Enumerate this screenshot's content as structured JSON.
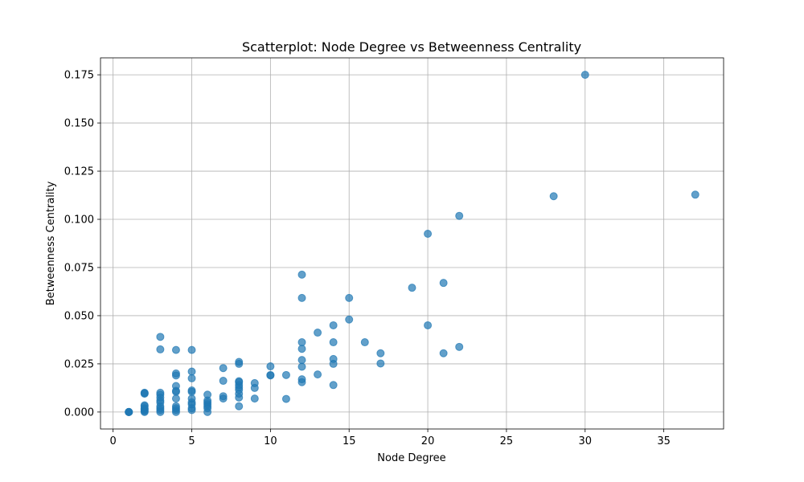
{
  "chart_data": {
    "type": "scatter",
    "title": "Scatterplot: Node Degree vs Betweenness Centrality",
    "xlabel": "Node Degree",
    "ylabel": "Betweenness Centrality",
    "xlim": [
      -0.8,
      38.8
    ],
    "ylim": [
      -0.0088,
      0.1838
    ],
    "xticks": [
      0,
      5,
      10,
      15,
      20,
      25,
      30,
      35
    ],
    "xtick_labels": [
      "0",
      "5",
      "10",
      "15",
      "20",
      "25",
      "30",
      "35"
    ],
    "yticks": [
      0.0,
      0.025,
      0.05,
      0.075,
      0.1,
      0.125,
      0.15,
      0.175
    ],
    "ytick_labels": [
      "0.000",
      "0.025",
      "0.050",
      "0.075",
      "0.100",
      "0.125",
      "0.150",
      "0.175"
    ],
    "grid": true,
    "color": "#1f77b4",
    "alpha": 0.7,
    "points": [
      {
        "x": 1,
        "y": 0.0
      },
      {
        "x": 1,
        "y": 0.0
      },
      {
        "x": 1,
        "y": 0.0
      },
      {
        "x": 1,
        "y": 0.0
      },
      {
        "x": 2,
        "y": 0.0
      },
      {
        "x": 2,
        "y": 0.0005
      },
      {
        "x": 2,
        "y": 0.001
      },
      {
        "x": 2,
        "y": 0.0015
      },
      {
        "x": 2,
        "y": 0.002
      },
      {
        "x": 2,
        "y": 0.003
      },
      {
        "x": 2,
        "y": 0.0035
      },
      {
        "x": 2,
        "y": 0.0095
      },
      {
        "x": 2,
        "y": 0.01
      },
      {
        "x": 2,
        "y": 0.0098
      },
      {
        "x": 3,
        "y": 0.0
      },
      {
        "x": 3,
        "y": 0.001
      },
      {
        "x": 3,
        "y": 0.002
      },
      {
        "x": 3,
        "y": 0.003
      },
      {
        "x": 3,
        "y": 0.005
      },
      {
        "x": 3,
        "y": 0.006
      },
      {
        "x": 3,
        "y": 0.0075
      },
      {
        "x": 3,
        "y": 0.009
      },
      {
        "x": 3,
        "y": 0.01
      },
      {
        "x": 3,
        "y": 0.0325
      },
      {
        "x": 3,
        "y": 0.039
      },
      {
        "x": 4,
        "y": 0.0
      },
      {
        "x": 4,
        "y": 0.001
      },
      {
        "x": 4,
        "y": 0.002
      },
      {
        "x": 4,
        "y": 0.003
      },
      {
        "x": 4,
        "y": 0.007
      },
      {
        "x": 4,
        "y": 0.0105
      },
      {
        "x": 4,
        "y": 0.011
      },
      {
        "x": 4,
        "y": 0.0135
      },
      {
        "x": 4,
        "y": 0.019
      },
      {
        "x": 4,
        "y": 0.02
      },
      {
        "x": 4,
        "y": 0.0322
      },
      {
        "x": 5,
        "y": 0.001
      },
      {
        "x": 5,
        "y": 0.002
      },
      {
        "x": 5,
        "y": 0.004
      },
      {
        "x": 5,
        "y": 0.005
      },
      {
        "x": 5,
        "y": 0.007
      },
      {
        "x": 5,
        "y": 0.0105
      },
      {
        "x": 5,
        "y": 0.0112
      },
      {
        "x": 5,
        "y": 0.0175
      },
      {
        "x": 5,
        "y": 0.021
      },
      {
        "x": 5,
        "y": 0.0322
      },
      {
        "x": 6,
        "y": 0.0
      },
      {
        "x": 6,
        "y": 0.002
      },
      {
        "x": 6,
        "y": 0.003
      },
      {
        "x": 6,
        "y": 0.004
      },
      {
        "x": 6,
        "y": 0.005
      },
      {
        "x": 6,
        "y": 0.006
      },
      {
        "x": 6,
        "y": 0.009
      },
      {
        "x": 7,
        "y": 0.007
      },
      {
        "x": 7,
        "y": 0.0082
      },
      {
        "x": 7,
        "y": 0.0162
      },
      {
        "x": 7,
        "y": 0.0228
      },
      {
        "x": 8,
        "y": 0.003
      },
      {
        "x": 8,
        "y": 0.0075
      },
      {
        "x": 8,
        "y": 0.0095
      },
      {
        "x": 8,
        "y": 0.0115
      },
      {
        "x": 8,
        "y": 0.0128
      },
      {
        "x": 8,
        "y": 0.014
      },
      {
        "x": 8,
        "y": 0.0155
      },
      {
        "x": 8,
        "y": 0.016
      },
      {
        "x": 8,
        "y": 0.025
      },
      {
        "x": 8,
        "y": 0.026
      },
      {
        "x": 9,
        "y": 0.007
      },
      {
        "x": 9,
        "y": 0.0125
      },
      {
        "x": 9,
        "y": 0.015
      },
      {
        "x": 10,
        "y": 0.019
      },
      {
        "x": 10,
        "y": 0.0192
      },
      {
        "x": 10,
        "y": 0.0237
      },
      {
        "x": 11,
        "y": 0.0068
      },
      {
        "x": 11,
        "y": 0.0192
      },
      {
        "x": 12,
        "y": 0.0155
      },
      {
        "x": 12,
        "y": 0.017
      },
      {
        "x": 12,
        "y": 0.0235
      },
      {
        "x": 12,
        "y": 0.027
      },
      {
        "x": 12,
        "y": 0.0328
      },
      {
        "x": 12,
        "y": 0.0362
      },
      {
        "x": 12,
        "y": 0.0592
      },
      {
        "x": 12,
        "y": 0.0713
      },
      {
        "x": 13,
        "y": 0.0195
      },
      {
        "x": 13,
        "y": 0.0412
      },
      {
        "x": 14,
        "y": 0.014
      },
      {
        "x": 14,
        "y": 0.025
      },
      {
        "x": 14,
        "y": 0.0275
      },
      {
        "x": 14,
        "y": 0.0362
      },
      {
        "x": 14,
        "y": 0.045
      },
      {
        "x": 15,
        "y": 0.048
      },
      {
        "x": 15,
        "y": 0.0592
      },
      {
        "x": 16,
        "y": 0.0362
      },
      {
        "x": 17,
        "y": 0.0252
      },
      {
        "x": 17,
        "y": 0.0305
      },
      {
        "x": 19,
        "y": 0.0645
      },
      {
        "x": 20,
        "y": 0.045
      },
      {
        "x": 20,
        "y": 0.0925
      },
      {
        "x": 21,
        "y": 0.0305
      },
      {
        "x": 21,
        "y": 0.067
      },
      {
        "x": 22,
        "y": 0.0338
      },
      {
        "x": 22,
        "y": 0.1018
      },
      {
        "x": 28,
        "y": 0.112
      },
      {
        "x": 30,
        "y": 0.175
      },
      {
        "x": 37,
        "y": 0.1128
      }
    ]
  }
}
